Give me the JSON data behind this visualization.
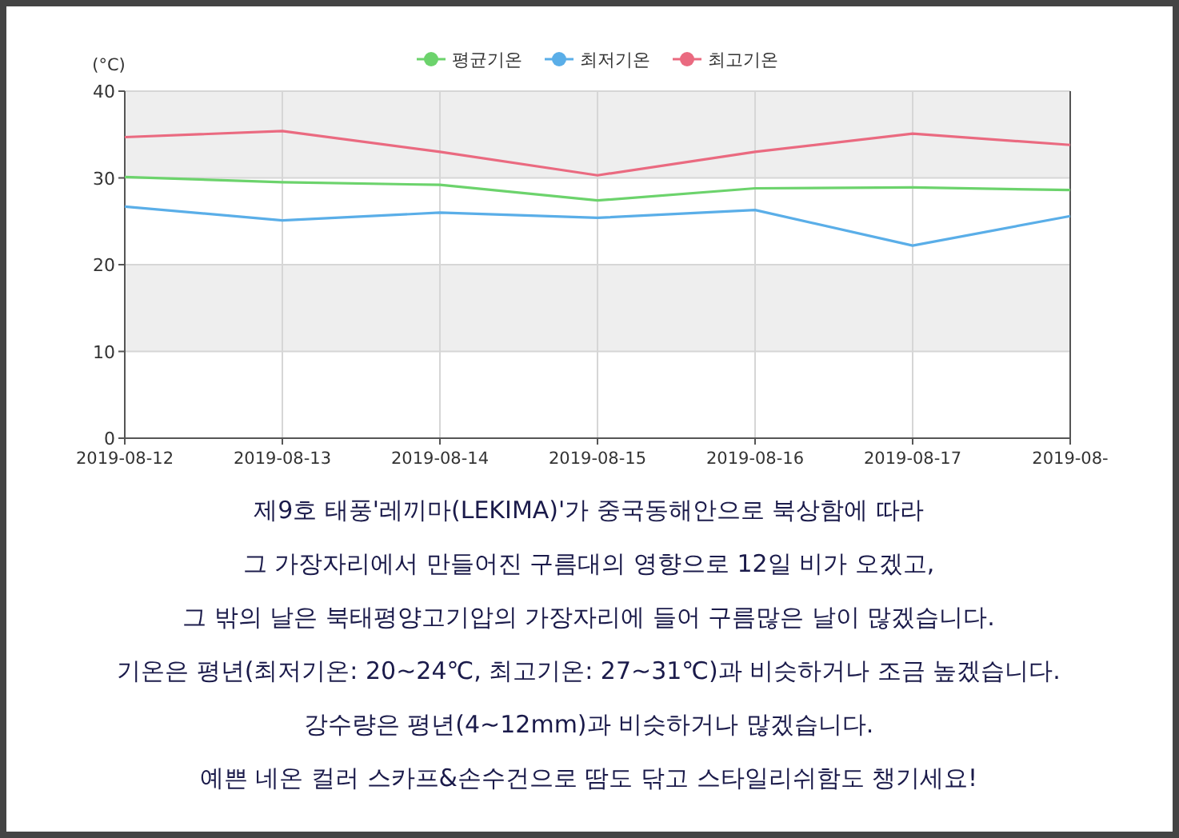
{
  "chart_data": {
    "type": "line",
    "ylabel": "(°C)",
    "categories": [
      "2019-08-12",
      "2019-08-13",
      "2019-08-14",
      "2019-08-15",
      "2019-08-16",
      "2019-08-17",
      "2019-08-"
    ],
    "series": [
      {
        "name": "평균기온",
        "color": "#6cd36c",
        "values": [
          30.1,
          29.5,
          29.2,
          27.4,
          28.8,
          28.9,
          28.6
        ]
      },
      {
        "name": "최저기온",
        "color": "#5aaee8",
        "values": [
          26.7,
          25.1,
          26.0,
          25.4,
          26.3,
          22.2,
          25.6
        ]
      },
      {
        "name": "최고기온",
        "color": "#ea6a80",
        "values": [
          34.7,
          35.4,
          33.0,
          30.3,
          33.0,
          35.1,
          33.8
        ]
      }
    ],
    "ylim": [
      0,
      40
    ],
    "yticks": [
      0,
      10,
      20,
      30,
      40
    ],
    "grid": true,
    "legend": "top",
    "bands": [
      {
        "axis": "y",
        "from": 10,
        "to": 20,
        "color": "#eeeeee"
      },
      {
        "axis": "y",
        "from": 30,
        "to": 40,
        "color": "#eeeeee"
      }
    ],
    "annotations": [
      "제9호 태풍'레끼마(LEKIMA)'가 중국동해안으로 북상함에 따라",
      "그 가장자리에서 만들어진 구름대의 영향으로 12일 비가 오겠고,",
      "그 밖의 날은 북태평양고기압의 가장자리에 들어 구름많은 날이 많겠습니다.",
      "기온은 평년(최저기온: 20~24℃, 최고기온: 27~31℃)과 비슷하거나 조금 높겠습니다.",
      "강수량은 평년(4~12mm)과 비슷하거나 많겠습니다.",
      "예쁜 네온 컬러 스카프&손수건으로 땀도 닦고 스타일리쉬함도 챙기세요!"
    ]
  }
}
